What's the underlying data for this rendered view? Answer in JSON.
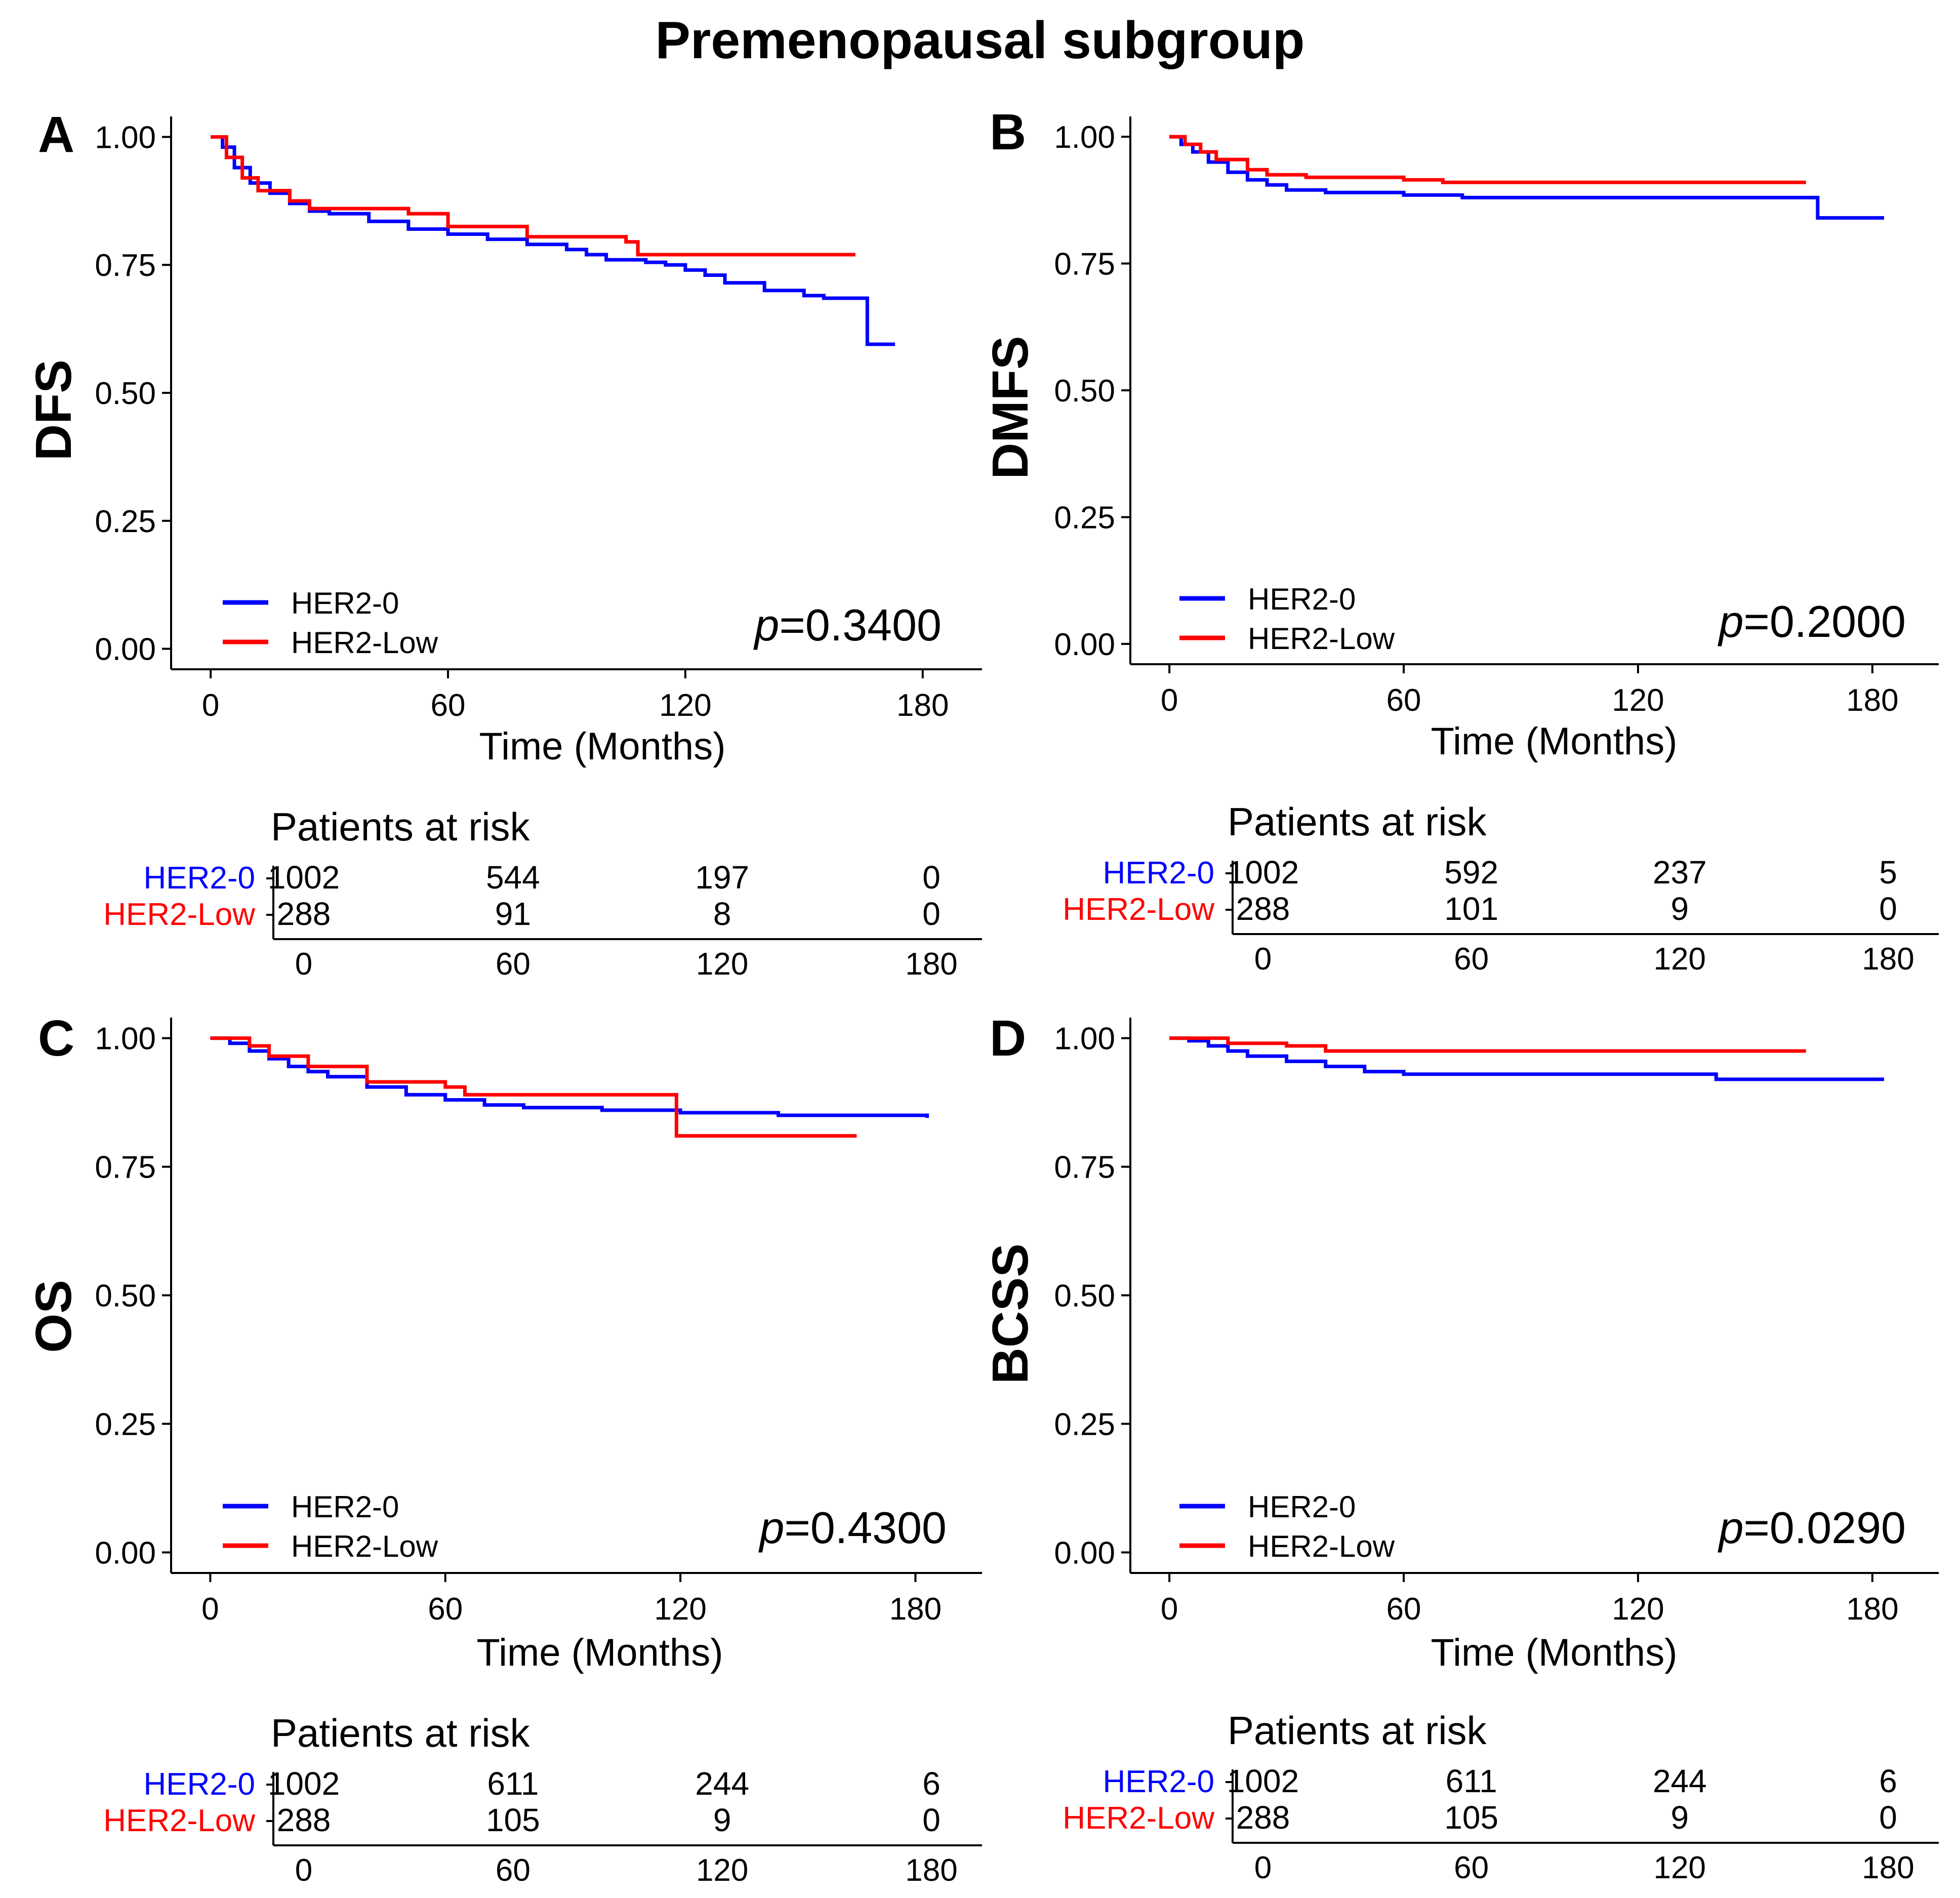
{
  "figure": {
    "title": "Premenopausal subgroup",
    "series_colors": {
      "HER2-0": "#0000ff",
      "HER2-Low": "#ff0000"
    },
    "panel_labels": [
      "A",
      "B",
      "C",
      "D"
    ],
    "risk_table_title": "Patients at risk"
  },
  "chart_data": [
    {
      "type": "line",
      "panel": "A",
      "title": "",
      "xlabel": "Time (Months)",
      "ylabel": "DFS",
      "xlim": [
        -10,
        195
      ],
      "ylim": [
        -0.04,
        1.04
      ],
      "x_ticks": [
        "0",
        "60",
        "120",
        "180"
      ],
      "y_ticks": [
        "0.00",
        "0.25",
        "0.50",
        "0.75",
        "1.00"
      ],
      "legend": [
        "HER2-0",
        "HER2-Low"
      ],
      "p_value": "=0.3400",
      "series": [
        {
          "name": "HER2-0",
          "x": [
            0,
            3,
            6,
            10,
            15,
            20,
            25,
            30,
            40,
            50,
            60,
            70,
            80,
            90,
            95,
            100,
            110,
            115,
            120,
            125,
            130,
            140,
            150,
            155,
            160,
            163,
            166,
            173
          ],
          "y": [
            1.0,
            0.98,
            0.94,
            0.91,
            0.89,
            0.87,
            0.855,
            0.85,
            0.835,
            0.82,
            0.81,
            0.8,
            0.79,
            0.78,
            0.77,
            0.76,
            0.755,
            0.75,
            0.74,
            0.73,
            0.715,
            0.7,
            0.69,
            0.685,
            0.685,
            0.685,
            0.595,
            0.595
          ]
        },
        {
          "name": "HER2-Low",
          "x": [
            0,
            4,
            8,
            12,
            20,
            25,
            50,
            60,
            80,
            105,
            108,
            163
          ],
          "y": [
            1.0,
            0.96,
            0.92,
            0.895,
            0.875,
            0.86,
            0.85,
            0.825,
            0.805,
            0.795,
            0.77,
            0.77
          ]
        }
      ],
      "risk_table": {
        "x": [
          0,
          60,
          120,
          180
        ],
        "rows": [
          {
            "name": "HER2-0",
            "values": [
              "1002",
              "544",
              "197",
              "0"
            ]
          },
          {
            "name": "HER2-Low",
            "values": [
              "288",
              "91",
              "8",
              "0"
            ]
          }
        ]
      }
    },
    {
      "type": "line",
      "panel": "B",
      "title": "",
      "xlabel": "Time (Months)",
      "ylabel": "DMFS",
      "xlim": [
        -10,
        197
      ],
      "ylim": [
        -0.04,
        1.04
      ],
      "x_ticks": [
        "0",
        "60",
        "120",
        "180"
      ],
      "y_ticks": [
        "0.00",
        "0.25",
        "0.50",
        "0.75",
        "1.00"
      ],
      "legend": [
        "HER2-0",
        "HER2-Low"
      ],
      "p_value": "=0.2000",
      "series": [
        {
          "name": "HER2-0",
          "x": [
            0,
            3,
            6,
            10,
            15,
            20,
            25,
            30,
            40,
            60,
            75,
            90,
            120,
            150,
            163,
            166,
            183
          ],
          "y": [
            1.0,
            0.985,
            0.97,
            0.95,
            0.93,
            0.915,
            0.905,
            0.895,
            0.89,
            0.885,
            0.88,
            0.88,
            0.88,
            0.88,
            0.88,
            0.84,
            0.84
          ]
        },
        {
          "name": "HER2-Low",
          "x": [
            0,
            4,
            8,
            12,
            20,
            25,
            35,
            60,
            70,
            163
          ],
          "y": [
            1.0,
            0.985,
            0.97,
            0.955,
            0.935,
            0.925,
            0.92,
            0.915,
            0.91,
            0.91
          ]
        }
      ],
      "risk_table": {
        "x": [
          0,
          60,
          120,
          180
        ],
        "rows": [
          {
            "name": "HER2-0",
            "values": [
              "1002",
              "592",
              "237",
              "5"
            ]
          },
          {
            "name": "HER2-Low",
            "values": [
              "288",
              "101",
              "9",
              "0"
            ]
          }
        ]
      }
    },
    {
      "type": "line",
      "panel": "C",
      "title": "",
      "xlabel": "Time (Months)",
      "ylabel": "OS",
      "xlim": [
        -10,
        197
      ],
      "ylim": [
        -0.04,
        1.04
      ],
      "x_ticks": [
        "0",
        "60",
        "120",
        "180"
      ],
      "y_ticks": [
        "0.00",
        "0.25",
        "0.50",
        "0.75",
        "1.00"
      ],
      "legend": [
        "HER2-0",
        "HER2-Low"
      ],
      "p_value": "=0.4300",
      "series": [
        {
          "name": "HER2-0",
          "x": [
            0,
            5,
            10,
            15,
            20,
            25,
            30,
            40,
            50,
            60,
            70,
            80,
            100,
            120,
            145,
            183
          ],
          "y": [
            1.0,
            0.99,
            0.975,
            0.96,
            0.945,
            0.935,
            0.925,
            0.905,
            0.89,
            0.88,
            0.87,
            0.865,
            0.86,
            0.855,
            0.85,
            0.845
          ]
        },
        {
          "name": "HER2-Low",
          "x": [
            0,
            10,
            15,
            25,
            40,
            60,
            65,
            117,
            119,
            165
          ],
          "y": [
            1.0,
            0.985,
            0.965,
            0.945,
            0.915,
            0.905,
            0.89,
            0.89,
            0.81,
            0.81
          ]
        }
      ],
      "risk_table": {
        "x": [
          0,
          60,
          120,
          180
        ],
        "rows": [
          {
            "name": "HER2-0",
            "values": [
              "1002",
              "611",
              "244",
              "6"
            ]
          },
          {
            "name": "HER2-Low",
            "values": [
              "288",
              "105",
              "9",
              "0"
            ]
          }
        ]
      }
    },
    {
      "type": "line",
      "panel": "D",
      "title": "",
      "xlabel": "Time (Months)",
      "ylabel": "BCSS",
      "xlim": [
        -10,
        197
      ],
      "ylim": [
        -0.04,
        1.04
      ],
      "x_ticks": [
        "0",
        "60",
        "120",
        "180"
      ],
      "y_ticks": [
        "0.00",
        "0.25",
        "0.50",
        "0.75",
        "1.00"
      ],
      "legend": [
        "HER2-0",
        "HER2-Low"
      ],
      "p_value": "=0.0290",
      "series": [
        {
          "name": "HER2-0",
          "x": [
            0,
            5,
            10,
            15,
            20,
            30,
            40,
            50,
            60,
            90,
            120,
            130,
            140,
            183
          ],
          "y": [
            1.0,
            0.995,
            0.985,
            0.975,
            0.965,
            0.955,
            0.945,
            0.935,
            0.93,
            0.93,
            0.93,
            0.93,
            0.92,
            0.92
          ]
        },
        {
          "name": "HER2-Low",
          "x": [
            0,
            12,
            15,
            30,
            40,
            60,
            100,
            163
          ],
          "y": [
            1.0,
            1.0,
            0.99,
            0.985,
            0.975,
            0.975,
            0.975,
            0.975
          ]
        }
      ],
      "risk_table": {
        "x": [
          0,
          60,
          120,
          180
        ],
        "rows": [
          {
            "name": "HER2-0",
            "values": [
              "1002",
              "611",
              "244",
              "6"
            ]
          },
          {
            "name": "HER2-Low",
            "values": [
              "288",
              "105",
              "9",
              "0"
            ]
          }
        ]
      }
    }
  ]
}
